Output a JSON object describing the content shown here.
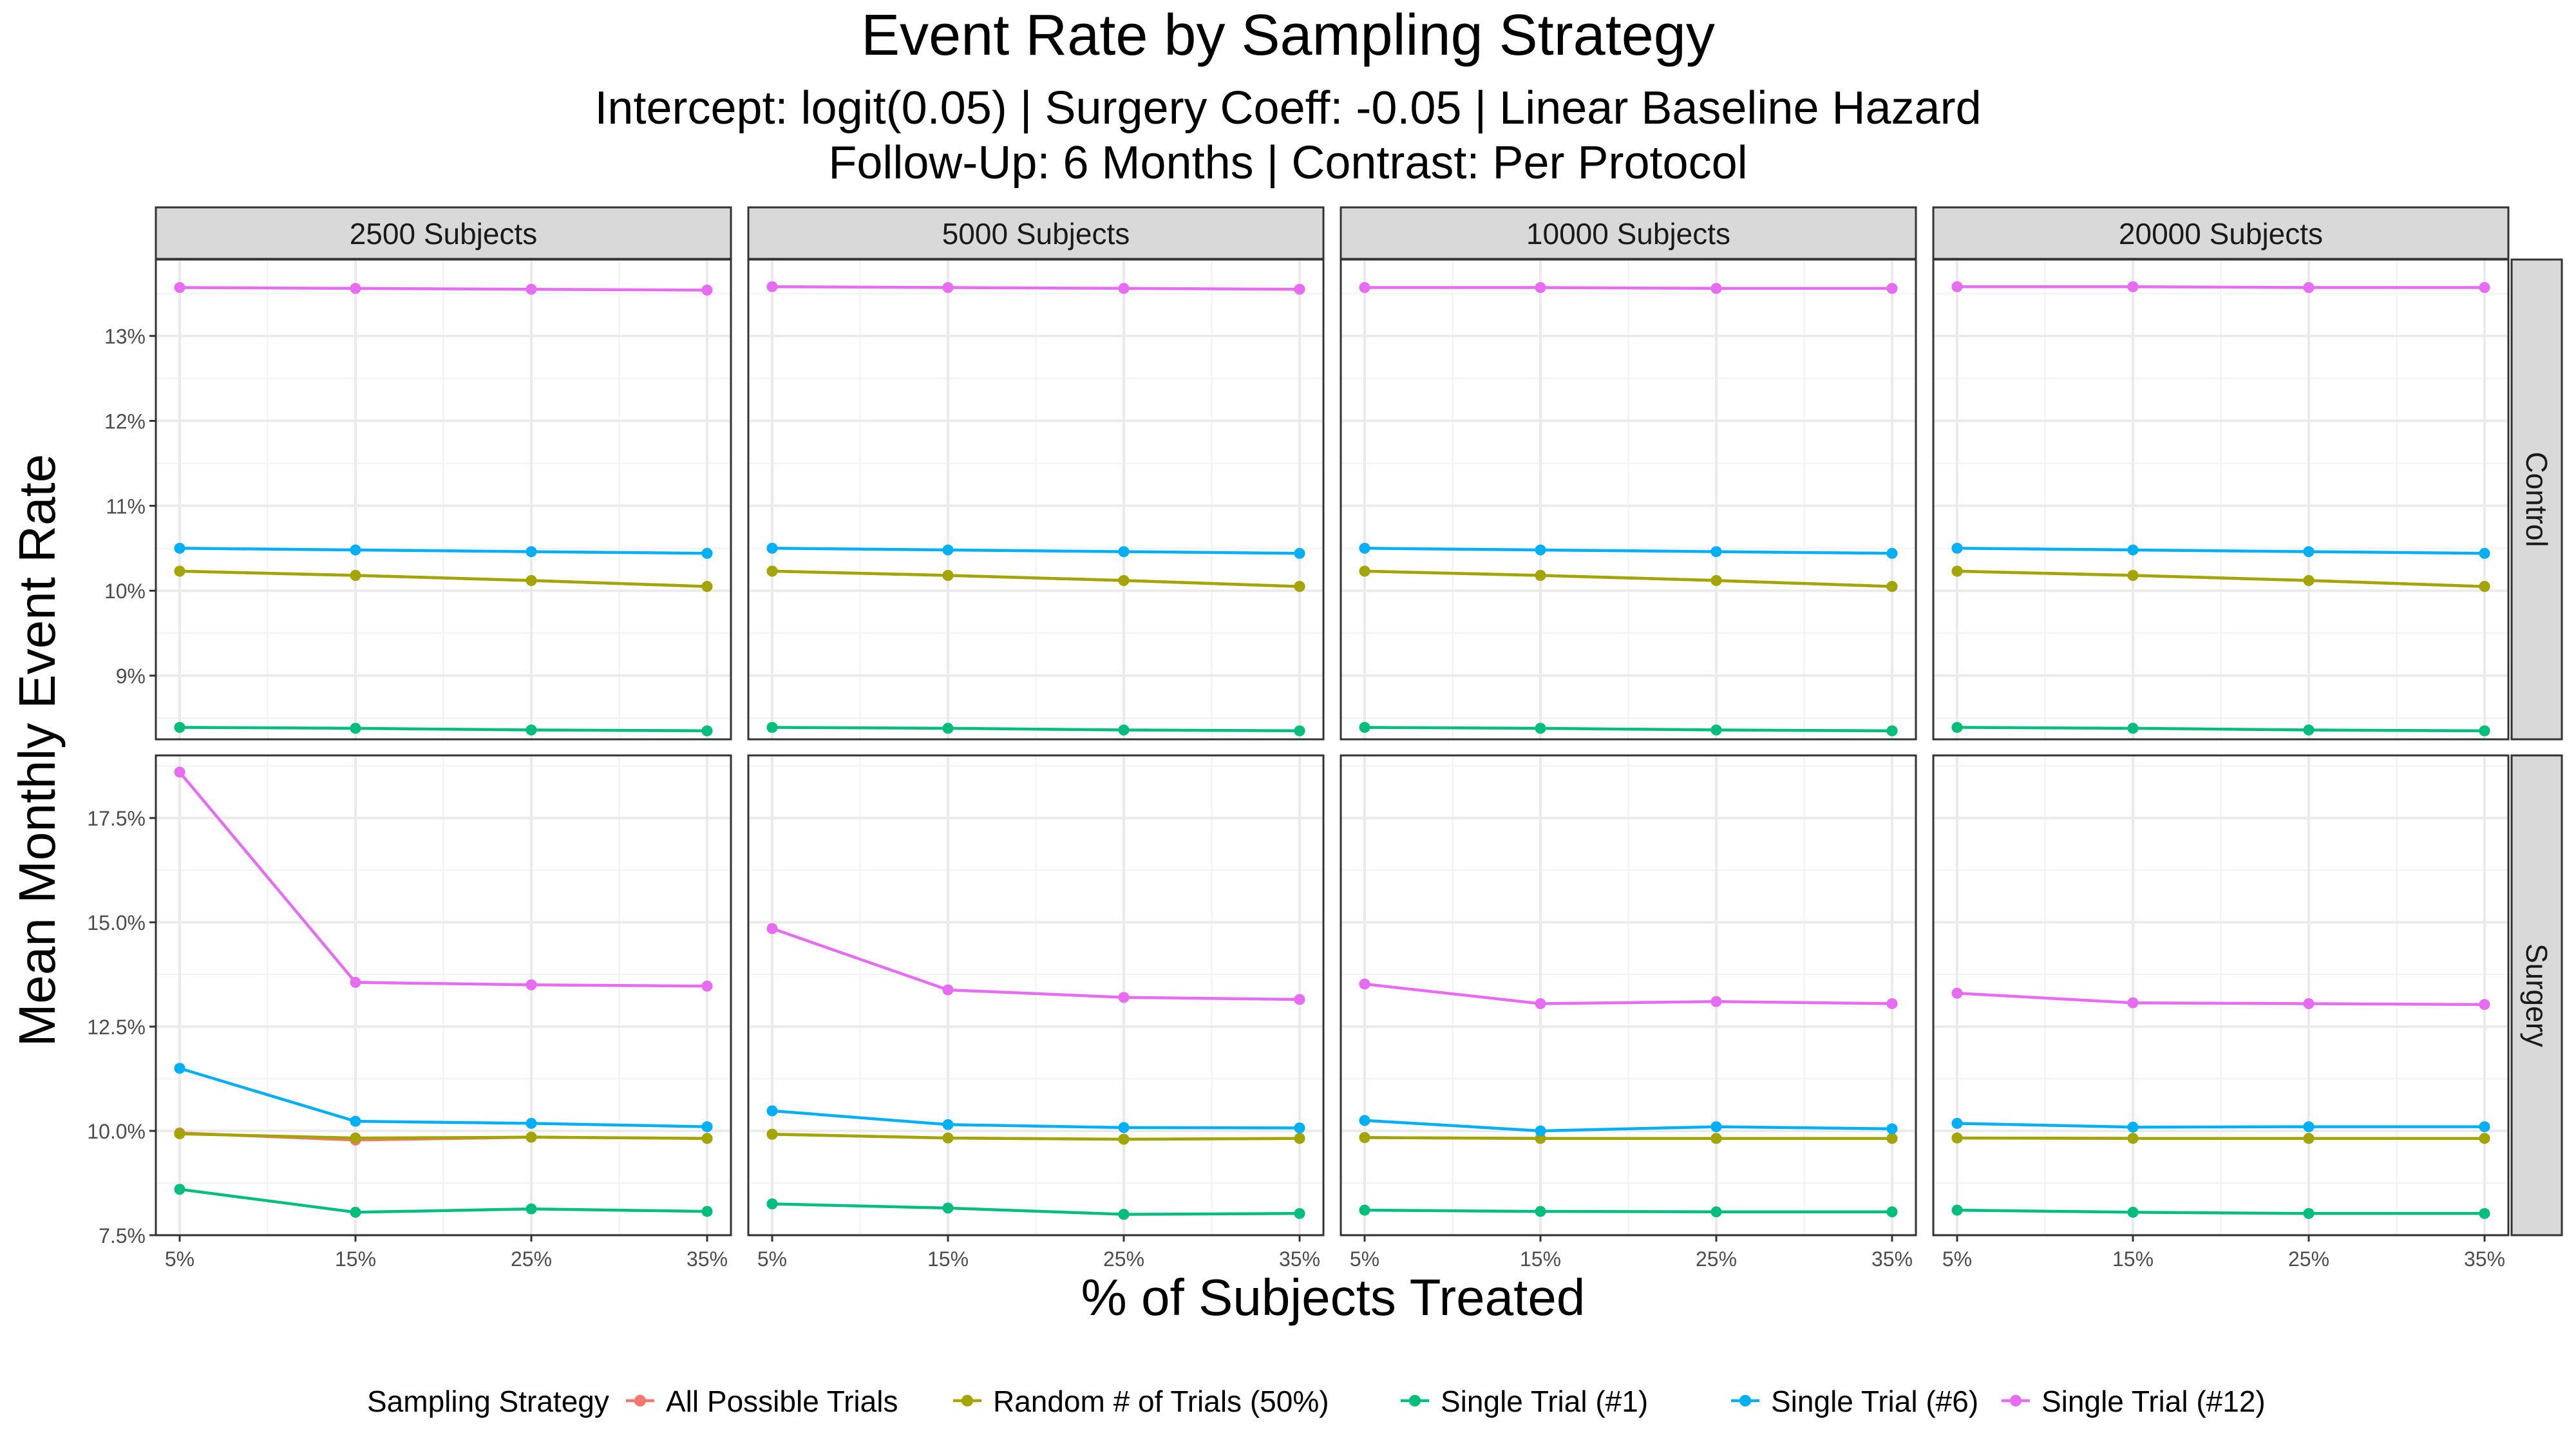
{
  "chart_data": {
    "type": "line",
    "title": "Event Rate by Sampling Strategy",
    "subtitle_lines": [
      "Intercept: logit(0.05) | Surgery Coeff: -0.05 | Linear Baseline Hazard",
      "Follow-Up: 6 Months | Contrast: Per Protocol"
    ],
    "xlabel": "% of Subjects Treated",
    "ylabel": "Mean Monthly Event Rate",
    "x_categories": [
      "5%",
      "15%",
      "25%",
      "35%"
    ],
    "x_values": [
      5,
      15,
      25,
      35
    ],
    "column_facets": [
      "2500 Subjects",
      "5000 Subjects",
      "10000 Subjects",
      "20000 Subjects"
    ],
    "row_facets": [
      "Control",
      "Surgery"
    ],
    "legend": {
      "title": "Sampling Strategy",
      "position": "bottom",
      "entries": [
        "All Possible Trials",
        "Random # of Trials (50%)",
        "Single Trial (#1)",
        "Single Trial (#6)",
        "Single Trial (#12)"
      ]
    },
    "colors": {
      "All Possible Trials": "#F8766D",
      "Random # of Trials (50%)": "#A3A500",
      "Single Trial (#1)": "#00BF7D",
      "Single Trial (#6)": "#00B0F6",
      "Single Trial (#12)": "#E76BF3"
    },
    "rows": [
      {
        "name": "Control",
        "ylim": [
          8.25,
          13.9
        ],
        "y_ticks": [
          9,
          10,
          11,
          12,
          13
        ],
        "y_tick_labels": [
          "9%",
          "10%",
          "11%",
          "12%",
          "13%"
        ],
        "panels": [
          {
            "facet": "2500 Subjects",
            "series": [
              {
                "name": "All Possible Trials",
                "values": [
                  10.23,
                  10.18,
                  10.12,
                  10.05
                ]
              },
              {
                "name": "Random # of Trials (50%)",
                "values": [
                  10.23,
                  10.18,
                  10.12,
                  10.05
                ]
              },
              {
                "name": "Single Trial (#1)",
                "values": [
                  8.39,
                  8.38,
                  8.36,
                  8.35
                ]
              },
              {
                "name": "Single Trial (#6)",
                "values": [
                  10.5,
                  10.48,
                  10.46,
                  10.44
                ]
              },
              {
                "name": "Single Trial (#12)",
                "values": [
                  13.57,
                  13.56,
                  13.55,
                  13.54
                ]
              }
            ]
          },
          {
            "facet": "5000 Subjects",
            "series": [
              {
                "name": "All Possible Trials",
                "values": [
                  10.23,
                  10.18,
                  10.12,
                  10.05
                ]
              },
              {
                "name": "Random # of Trials (50%)",
                "values": [
                  10.23,
                  10.18,
                  10.12,
                  10.05
                ]
              },
              {
                "name": "Single Trial (#1)",
                "values": [
                  8.39,
                  8.38,
                  8.36,
                  8.35
                ]
              },
              {
                "name": "Single Trial (#6)",
                "values": [
                  10.5,
                  10.48,
                  10.46,
                  10.44
                ]
              },
              {
                "name": "Single Trial (#12)",
                "values": [
                  13.58,
                  13.57,
                  13.56,
                  13.55
                ]
              }
            ]
          },
          {
            "facet": "10000 Subjects",
            "series": [
              {
                "name": "All Possible Trials",
                "values": [
                  10.23,
                  10.18,
                  10.12,
                  10.05
                ]
              },
              {
                "name": "Random # of Trials (50%)",
                "values": [
                  10.23,
                  10.18,
                  10.12,
                  10.05
                ]
              },
              {
                "name": "Single Trial (#1)",
                "values": [
                  8.39,
                  8.38,
                  8.36,
                  8.35
                ]
              },
              {
                "name": "Single Trial (#6)",
                "values": [
                  10.5,
                  10.48,
                  10.46,
                  10.44
                ]
              },
              {
                "name": "Single Trial (#12)",
                "values": [
                  13.57,
                  13.57,
                  13.56,
                  13.56
                ]
              }
            ]
          },
          {
            "facet": "20000 Subjects",
            "series": [
              {
                "name": "All Possible Trials",
                "values": [
                  10.23,
                  10.18,
                  10.12,
                  10.05
                ]
              },
              {
                "name": "Random # of Trials (50%)",
                "values": [
                  10.23,
                  10.18,
                  10.12,
                  10.05
                ]
              },
              {
                "name": "Single Trial (#1)",
                "values": [
                  8.39,
                  8.38,
                  8.36,
                  8.35
                ]
              },
              {
                "name": "Single Trial (#6)",
                "values": [
                  10.5,
                  10.48,
                  10.46,
                  10.44
                ]
              },
              {
                "name": "Single Trial (#12)",
                "values": [
                  13.58,
                  13.58,
                  13.57,
                  13.57
                ]
              }
            ]
          }
        ]
      },
      {
        "name": "Surgery",
        "ylim": [
          7.5,
          19.0
        ],
        "y_ticks": [
          7.5,
          10.0,
          12.5,
          15.0,
          17.5
        ],
        "y_tick_labels": [
          "7.5%",
          "10.0%",
          "12.5%",
          "15.0%",
          "17.5%"
        ],
        "panels": [
          {
            "facet": "2500 Subjects",
            "series": [
              {
                "name": "All Possible Trials",
                "values": [
                  9.95,
                  9.78,
                  9.85,
                  9.82
                ]
              },
              {
                "name": "Random # of Trials (50%)",
                "values": [
                  9.93,
                  9.83,
                  9.85,
                  9.82
                ]
              },
              {
                "name": "Single Trial (#1)",
                "values": [
                  8.6,
                  8.05,
                  8.13,
                  8.07
                ]
              },
              {
                "name": "Single Trial (#6)",
                "values": [
                  11.5,
                  10.23,
                  10.18,
                  10.1
                ]
              },
              {
                "name": "Single Trial (#12)",
                "values": [
                  18.6,
                  13.56,
                  13.5,
                  13.47
                ]
              }
            ]
          },
          {
            "facet": "5000 Subjects",
            "series": [
              {
                "name": "All Possible Trials",
                "values": [
                  9.92,
                  9.83,
                  9.8,
                  9.82
                ]
              },
              {
                "name": "Random # of Trials (50%)",
                "values": [
                  9.92,
                  9.83,
                  9.8,
                  9.82
                ]
              },
              {
                "name": "Single Trial (#1)",
                "values": [
                  8.25,
                  8.15,
                  8.0,
                  8.02
                ]
              },
              {
                "name": "Single Trial (#6)",
                "values": [
                  10.48,
                  10.15,
                  10.08,
                  10.07
                ]
              },
              {
                "name": "Single Trial (#12)",
                "values": [
                  14.85,
                  13.38,
                  13.2,
                  13.15
                ]
              }
            ]
          },
          {
            "facet": "10000 Subjects",
            "series": [
              {
                "name": "All Possible Trials",
                "values": [
                  9.84,
                  9.82,
                  9.82,
                  9.82
                ]
              },
              {
                "name": "Random # of Trials (50%)",
                "values": [
                  9.84,
                  9.82,
                  9.82,
                  9.82
                ]
              },
              {
                "name": "Single Trial (#1)",
                "values": [
                  8.1,
                  8.07,
                  8.06,
                  8.06
                ]
              },
              {
                "name": "Single Trial (#6)",
                "values": [
                  10.25,
                  10.0,
                  10.1,
                  10.05
                ]
              },
              {
                "name": "Single Trial (#12)",
                "values": [
                  13.52,
                  13.05,
                  13.1,
                  13.05
                ]
              }
            ]
          },
          {
            "facet": "20000 Subjects",
            "series": [
              {
                "name": "All Possible Trials",
                "values": [
                  9.83,
                  9.82,
                  9.82,
                  9.82
                ]
              },
              {
                "name": "Random # of Trials (50%)",
                "values": [
                  9.83,
                  9.82,
                  9.82,
                  9.82
                ]
              },
              {
                "name": "Single Trial (#1)",
                "values": [
                  8.1,
                  8.05,
                  8.02,
                  8.02
                ]
              },
              {
                "name": "Single Trial (#6)",
                "values": [
                  10.18,
                  10.09,
                  10.1,
                  10.1
                ]
              },
              {
                "name": "Single Trial (#12)",
                "values": [
                  13.3,
                  13.07,
                  13.05,
                  13.03
                ]
              }
            ]
          }
        ]
      }
    ]
  }
}
